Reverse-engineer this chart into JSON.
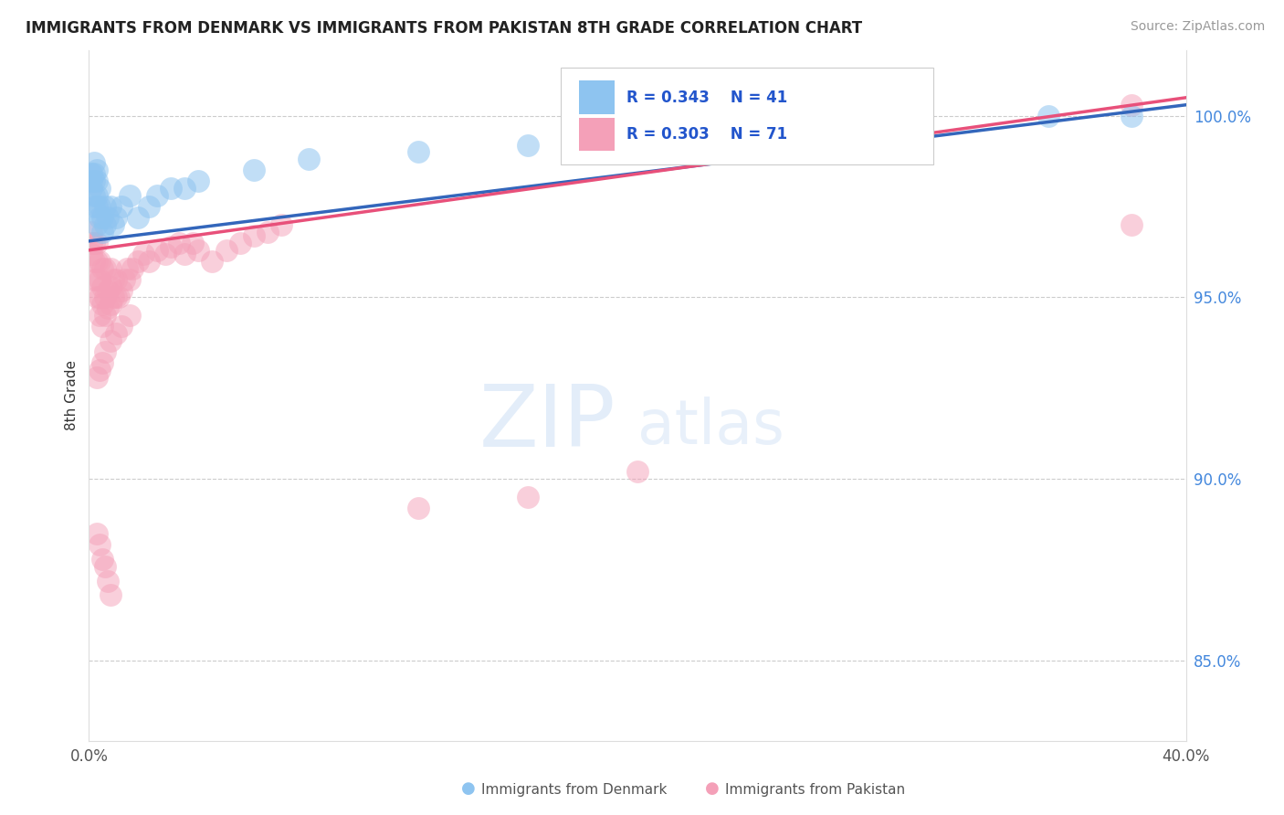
{
  "title": "IMMIGRANTS FROM DENMARK VS IMMIGRANTS FROM PAKISTAN 8TH GRADE CORRELATION CHART",
  "source": "Source: ZipAtlas.com",
  "ylabel": "8th Grade",
  "x_min": 0.0,
  "x_max": 0.4,
  "y_min": 0.828,
  "y_max": 1.018,
  "y_ticks": [
    0.85,
    0.9,
    0.95,
    1.0
  ],
  "y_tick_labels": [
    "85.0%",
    "90.0%",
    "95.0%",
    "100.0%"
  ],
  "x_ticks": [
    0.0,
    0.4
  ],
  "x_tick_labels": [
    "0.0%",
    "40.0%"
  ],
  "legend_labels": [
    "Immigrants from Denmark",
    "Immigrants from Pakistan"
  ],
  "r_denmark": 0.343,
  "n_denmark": 41,
  "r_pakistan": 0.303,
  "n_pakistan": 71,
  "color_denmark": "#8ec4f0",
  "color_pakistan": "#f4a0b8",
  "line_color_denmark": "#3366bb",
  "line_color_pakistan": "#e8507a",
  "dk_line_x0": 0.0,
  "dk_line_y0": 0.9655,
  "dk_line_x1": 0.4,
  "dk_line_y1": 1.003,
  "pk_line_x0": 0.0,
  "pk_line_y0": 0.963,
  "pk_line_x1": 0.4,
  "pk_line_y1": 1.005,
  "watermark_zip": "ZIP",
  "watermark_atlas": "atlas",
  "denmark_x": [
    0.001,
    0.001,
    0.001,
    0.002,
    0.002,
    0.002,
    0.002,
    0.002,
    0.003,
    0.003,
    0.003,
    0.003,
    0.003,
    0.004,
    0.004,
    0.004,
    0.005,
    0.005,
    0.006,
    0.006,
    0.007,
    0.008,
    0.009,
    0.01,
    0.012,
    0.015,
    0.018,
    0.022,
    0.025,
    0.03,
    0.035,
    0.04,
    0.06,
    0.08,
    0.12,
    0.16,
    0.2,
    0.25,
    0.3,
    0.35,
    0.38
  ],
  "denmark_y": [
    0.98,
    0.982,
    0.984,
    0.975,
    0.978,
    0.982,
    0.984,
    0.987,
    0.97,
    0.975,
    0.978,
    0.982,
    0.985,
    0.972,
    0.975,
    0.98,
    0.968,
    0.972,
    0.97,
    0.975,
    0.972,
    0.975,
    0.97,
    0.972,
    0.975,
    0.978,
    0.972,
    0.975,
    0.978,
    0.98,
    0.98,
    0.982,
    0.985,
    0.988,
    0.99,
    0.992,
    0.995,
    0.998,
    0.998,
    1.0,
    1.0
  ],
  "pakistan_x": [
    0.001,
    0.001,
    0.001,
    0.002,
    0.002,
    0.002,
    0.003,
    0.003,
    0.003,
    0.003,
    0.004,
    0.004,
    0.004,
    0.004,
    0.005,
    0.005,
    0.005,
    0.005,
    0.006,
    0.006,
    0.006,
    0.007,
    0.007,
    0.008,
    0.008,
    0.008,
    0.009,
    0.009,
    0.01,
    0.01,
    0.011,
    0.012,
    0.013,
    0.014,
    0.015,
    0.016,
    0.018,
    0.02,
    0.022,
    0.025,
    0.028,
    0.03,
    0.033,
    0.035,
    0.038,
    0.04,
    0.045,
    0.05,
    0.055,
    0.06,
    0.065,
    0.07,
    0.01,
    0.012,
    0.015,
    0.008,
    0.006,
    0.005,
    0.004,
    0.003,
    0.003,
    0.004,
    0.005,
    0.006,
    0.007,
    0.008,
    0.12,
    0.16,
    0.2,
    0.38,
    0.38
  ],
  "pakistan_y": [
    0.962,
    0.965,
    0.968,
    0.955,
    0.96,
    0.965,
    0.95,
    0.955,
    0.96,
    0.965,
    0.945,
    0.95,
    0.955,
    0.96,
    0.942,
    0.948,
    0.953,
    0.958,
    0.945,
    0.95,
    0.958,
    0.947,
    0.952,
    0.948,
    0.953,
    0.958,
    0.95,
    0.955,
    0.95,
    0.955,
    0.95,
    0.952,
    0.955,
    0.958,
    0.955,
    0.958,
    0.96,
    0.962,
    0.96,
    0.963,
    0.962,
    0.964,
    0.965,
    0.962,
    0.965,
    0.963,
    0.96,
    0.963,
    0.965,
    0.967,
    0.968,
    0.97,
    0.94,
    0.942,
    0.945,
    0.938,
    0.935,
    0.932,
    0.93,
    0.928,
    0.885,
    0.882,
    0.878,
    0.876,
    0.872,
    0.868,
    0.892,
    0.895,
    0.902,
    1.003,
    0.97
  ]
}
